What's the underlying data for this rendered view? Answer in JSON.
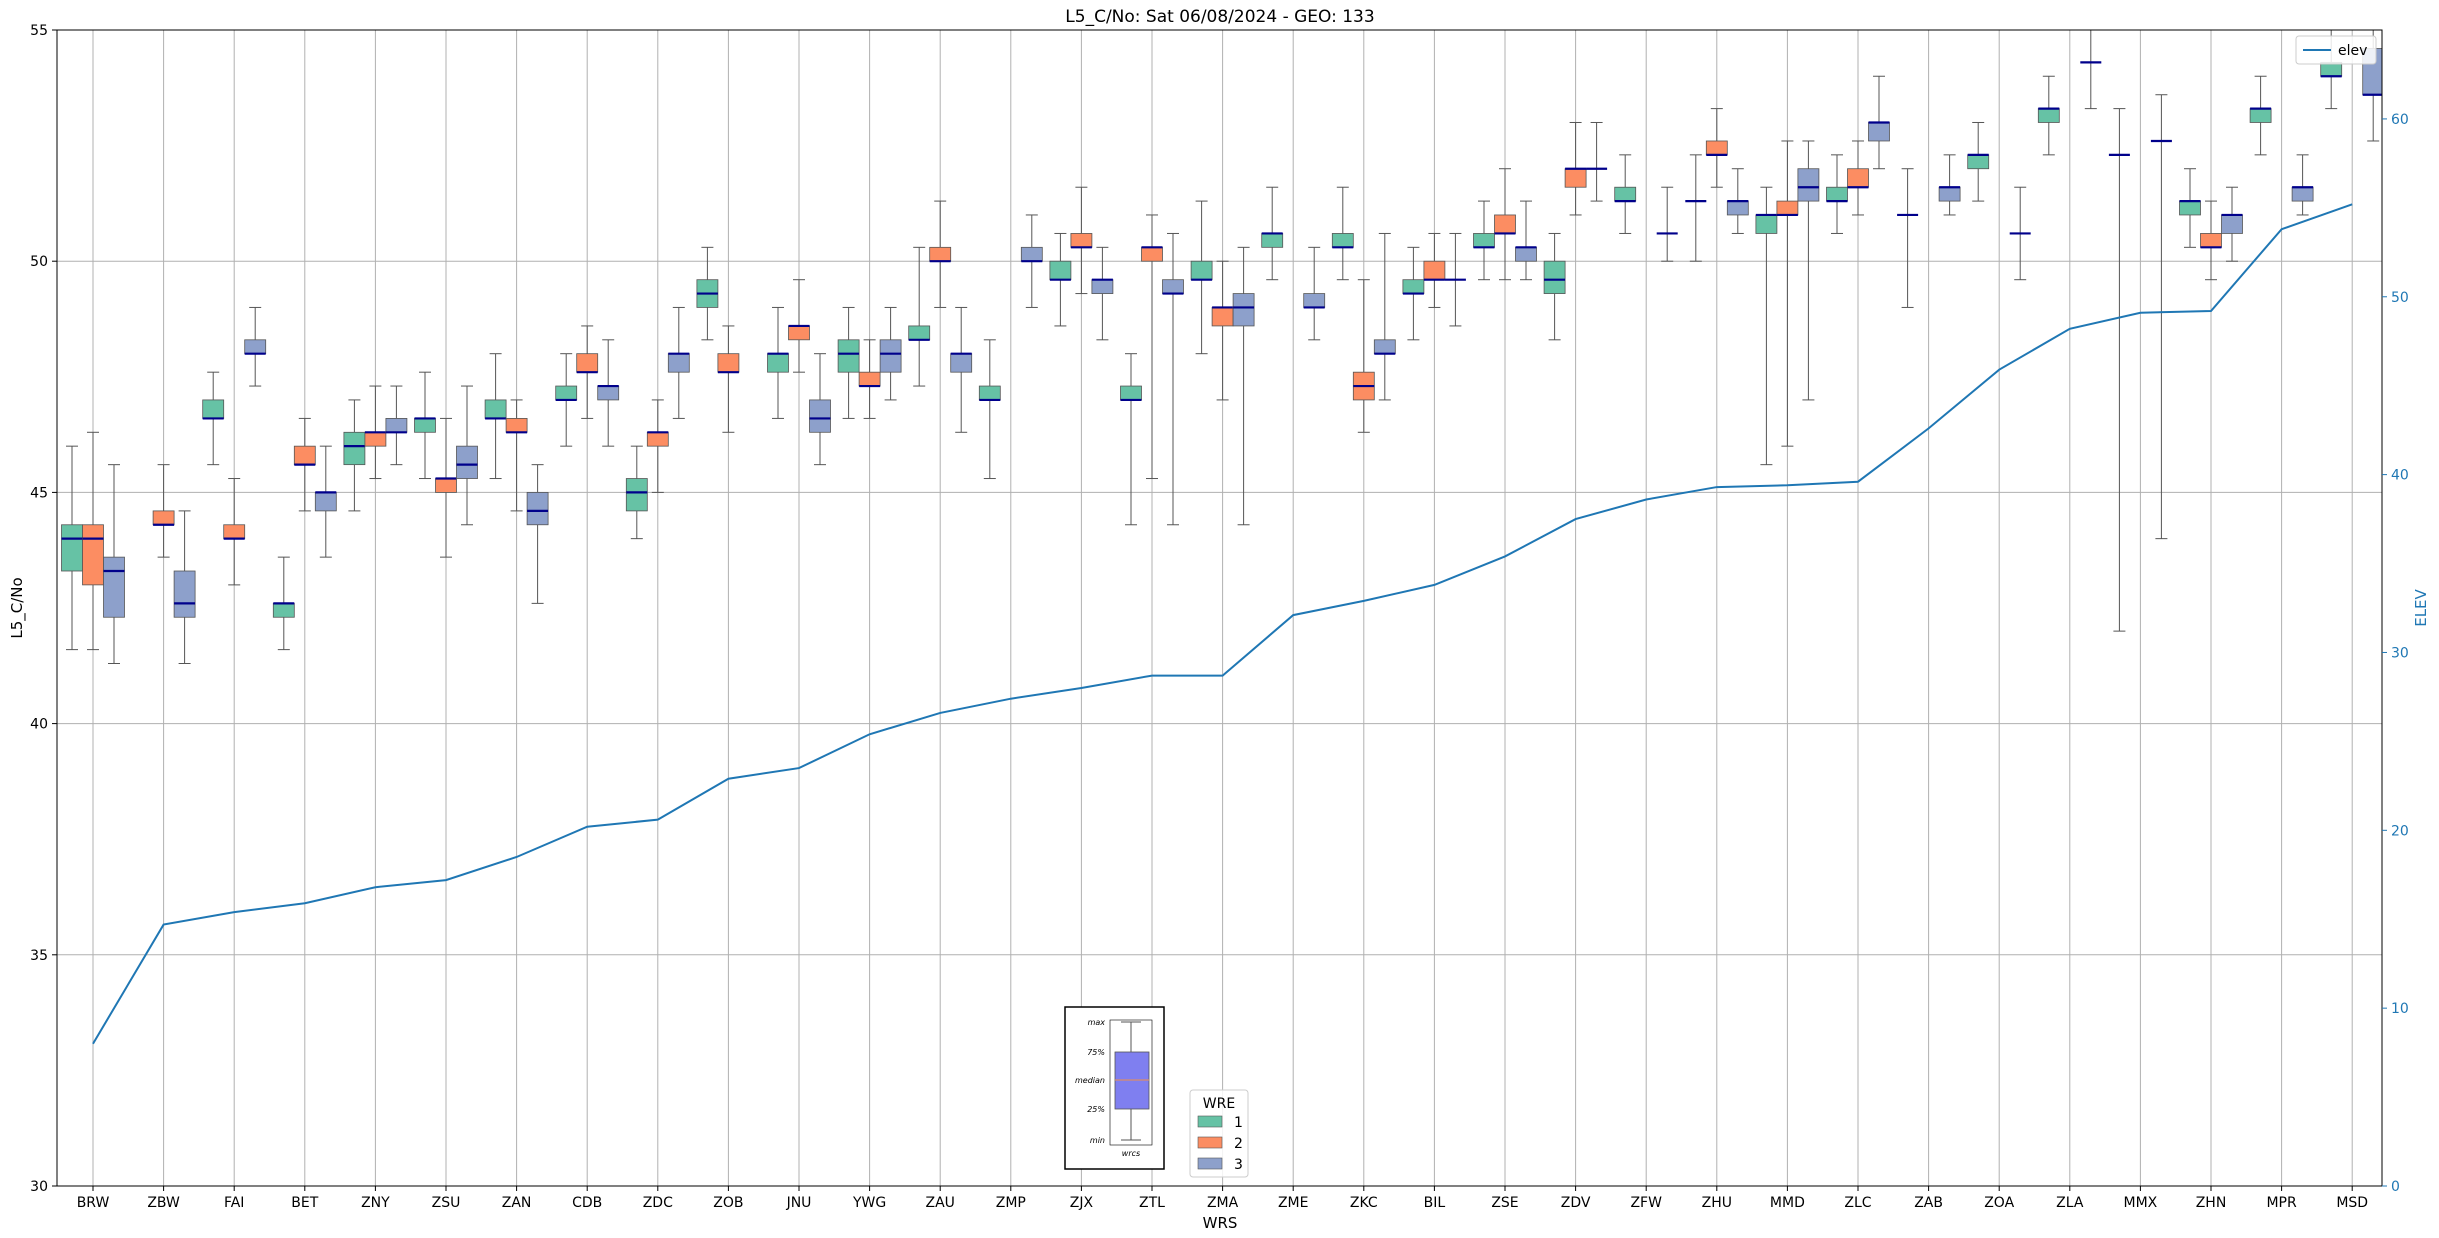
{
  "chart_data": {
    "type": "box",
    "title": "L5_C/No: Sat 06/08/2024 - GEO: 133",
    "xlabel": "WRS",
    "ylabel": "L5_C/No",
    "ylabel_right": "ELEV",
    "ylim": [
      30,
      55
    ],
    "ylim_right": [
      0,
      65
    ],
    "yticks": [
      "30",
      "35",
      "40",
      "45",
      "50",
      "55"
    ],
    "yticks_right": [
      "0",
      "10",
      "20",
      "30",
      "40",
      "50",
      "60"
    ],
    "grid": true,
    "categories": [
      "BRW",
      "ZBW",
      "FAI",
      "BET",
      "ZNY",
      "ZSU",
      "ZAN",
      "CDB",
      "ZDC",
      "ZOB",
      "JNU",
      "YWG",
      "ZAU",
      "ZMP",
      "ZJX",
      "ZTL",
      "ZMA",
      "ZME",
      "ZKC",
      "BIL",
      "ZSE",
      "ZDV",
      "ZFW",
      "ZHU",
      "MMD",
      "ZLC",
      "ZAB",
      "ZOA",
      "ZLA",
      "MMX",
      "ZHN",
      "MPR",
      "MSD"
    ],
    "elev": {
      "name": "elev",
      "values": [
        8,
        14.7,
        15.4,
        15.9,
        16.8,
        17.2,
        18.5,
        20.2,
        20.6,
        22.9,
        23.5,
        25.4,
        26.6,
        27.4,
        28.0,
        28.7,
        28.7,
        32.1,
        32.9,
        33.8,
        35.4,
        37.5,
        38.6,
        39.3,
        39.4,
        39.6,
        42.6,
        45.9,
        48.2,
        49.1,
        49.2,
        53.8,
        55.2
      ],
      "color": "#1f77b4",
      "legend_location": "upper right"
    },
    "box_legend": {
      "title": "WRE",
      "items": [
        {
          "label": "1",
          "color": "#66c2a5"
        },
        {
          "label": "2",
          "color": "#fc8d62"
        },
        {
          "label": "3",
          "color": "#8da0cb"
        }
      ]
    },
    "inset_key": {
      "labels": [
        "max",
        "75%",
        "median",
        "25%",
        "min"
      ],
      "xlabel": "wrcs"
    },
    "series": [
      {
        "name": "1",
        "boxes": [
          {
            "i": 0,
            "min": 41.6,
            "q1": 43.3,
            "med": 44.0,
            "q3": 44.3,
            "max": 46.0
          },
          {
            "i": 2,
            "min": 45.6,
            "q1": 46.6,
            "med": 46.6,
            "q3": 47.0,
            "max": 47.6
          },
          {
            "i": 3,
            "min": 41.6,
            "q1": 42.3,
            "med": 42.6,
            "q3": 42.6,
            "max": 43.6
          },
          {
            "i": 4,
            "min": 44.6,
            "q1": 45.6,
            "med": 46.0,
            "q3": 46.3,
            "max": 47.0
          },
          {
            "i": 5,
            "min": 45.3,
            "q1": 46.3,
            "med": 46.6,
            "q3": 46.6,
            "max": 47.6
          },
          {
            "i": 6,
            "min": 45.3,
            "q1": 46.6,
            "med": 46.6,
            "q3": 47.0,
            "max": 48.0
          },
          {
            "i": 7,
            "min": 46.0,
            "q1": 47.0,
            "med": 47.0,
            "q3": 47.3,
            "max": 48.0
          },
          {
            "i": 8,
            "min": 44.0,
            "q1": 44.6,
            "med": 45.0,
            "q3": 45.3,
            "max": 46.0
          },
          {
            "i": 9,
            "min": 48.3,
            "q1": 49.0,
            "med": 49.3,
            "q3": 49.6,
            "max": 50.3
          },
          {
            "i": 10,
            "min": 46.6,
            "q1": 47.6,
            "med": 48.0,
            "q3": 48.0,
            "max": 49.0
          },
          {
            "i": 11,
            "min": 46.6,
            "q1": 47.6,
            "med": 48.0,
            "q3": 48.3,
            "max": 49.0
          },
          {
            "i": 12,
            "min": 47.3,
            "q1": 48.3,
            "med": 48.3,
            "q3": 48.6,
            "max": 50.3
          },
          {
            "i": 13,
            "min": 45.3,
            "q1": 47.0,
            "med": 47.0,
            "q3": 47.3,
            "max": 48.3
          },
          {
            "i": 14,
            "min": 48.6,
            "q1": 49.6,
            "med": 49.6,
            "q3": 50.0,
            "max": 50.6
          },
          {
            "i": 15,
            "min": 44.3,
            "q1": 47.0,
            "med": 47.0,
            "q3": 47.3,
            "max": 48.0
          },
          {
            "i": 16,
            "min": 48.0,
            "q1": 49.6,
            "med": 49.6,
            "q3": 50.0,
            "max": 51.3
          },
          {
            "i": 17,
            "min": 49.6,
            "q1": 50.3,
            "med": 50.6,
            "q3": 50.6,
            "max": 51.6
          },
          {
            "i": 18,
            "min": 49.6,
            "q1": 50.3,
            "med": 50.3,
            "q3": 50.6,
            "max": 51.6
          },
          {
            "i": 19,
            "min": 48.3,
            "q1": 49.3,
            "med": 49.3,
            "q3": 49.6,
            "max": 50.3
          },
          {
            "i": 20,
            "min": 49.6,
            "q1": 50.3,
            "med": 50.3,
            "q3": 50.6,
            "max": 51.3
          },
          {
            "i": 21,
            "min": 48.3,
            "q1": 49.3,
            "med": 49.6,
            "q3": 50.0,
            "max": 50.6
          },
          {
            "i": 22,
            "min": 50.6,
            "q1": 51.3,
            "med": 51.3,
            "q3": 51.6,
            "max": 52.3
          },
          {
            "i": 23,
            "min": 50.0,
            "q1": 51.3,
            "med": 51.3,
            "q3": 51.3,
            "max": 52.3
          },
          {
            "i": 24,
            "min": 45.6,
            "q1": 50.6,
            "med": 51.0,
            "q3": 51.0,
            "max": 51.6
          },
          {
            "i": 25,
            "min": 50.6,
            "q1": 51.3,
            "med": 51.3,
            "q3": 51.6,
            "max": 52.3
          },
          {
            "i": 26,
            "min": 49.0,
            "q1": 51.0,
            "med": 51.0,
            "q3": 51.0,
            "max": 52.0
          },
          {
            "i": 27,
            "min": 51.3,
            "q1": 52.0,
            "med": 52.3,
            "q3": 52.3,
            "max": 53.0
          },
          {
            "i": 28,
            "min": 52.3,
            "q1": 53.0,
            "med": 53.3,
            "q3": 53.3,
            "max": 54.0
          },
          {
            "i": 29,
            "min": 42.0,
            "q1": 52.3,
            "med": 52.3,
            "q3": 52.3,
            "max": 53.3
          },
          {
            "i": 30,
            "min": 50.3,
            "q1": 51.0,
            "med": 51.3,
            "q3": 51.3,
            "max": 52.0
          },
          {
            "i": 31,
            "min": 52.3,
            "q1": 53.0,
            "med": 53.3,
            "q3": 53.3,
            "max": 54.0
          },
          {
            "i": 32,
            "min": 53.3,
            "q1": 54.0,
            "med": 54.0,
            "q3": 54.3,
            "max": 55.0
          }
        ]
      },
      {
        "name": "2",
        "boxes": [
          {
            "i": 0,
            "min": 41.6,
            "q1": 43.0,
            "med": 44.0,
            "q3": 44.3,
            "max": 46.3
          },
          {
            "i": 1,
            "min": 43.6,
            "q1": 44.3,
            "med": 44.3,
            "q3": 44.6,
            "max": 45.6
          },
          {
            "i": 2,
            "min": 43.0,
            "q1": 44.0,
            "med": 44.0,
            "q3": 44.3,
            "max": 45.3
          },
          {
            "i": 3,
            "min": 44.6,
            "q1": 45.6,
            "med": 45.6,
            "q3": 46.0,
            "max": 46.6
          },
          {
            "i": 4,
            "min": 45.3,
            "q1": 46.0,
            "med": 46.3,
            "q3": 46.3,
            "max": 47.3
          },
          {
            "i": 5,
            "min": 43.6,
            "q1": 45.0,
            "med": 45.3,
            "q3": 45.3,
            "max": 46.6
          },
          {
            "i": 6,
            "min": 44.6,
            "q1": 46.3,
            "med": 46.3,
            "q3": 46.6,
            "max": 47.0
          },
          {
            "i": 7,
            "min": 46.6,
            "q1": 47.6,
            "med": 47.6,
            "q3": 48.0,
            "max": 48.6
          },
          {
            "i": 8,
            "min": 45.0,
            "q1": 46.0,
            "med": 46.3,
            "q3": 46.3,
            "max": 47.0
          },
          {
            "i": 9,
            "min": 46.3,
            "q1": 47.6,
            "med": 47.6,
            "q3": 48.0,
            "max": 48.6
          },
          {
            "i": 10,
            "min": 47.6,
            "q1": 48.3,
            "med": 48.6,
            "q3": 48.6,
            "max": 49.6
          },
          {
            "i": 11,
            "min": 46.6,
            "q1": 47.3,
            "med": 47.3,
            "q3": 47.6,
            "max": 48.3
          },
          {
            "i": 12,
            "min": 49.0,
            "q1": 50.0,
            "med": 50.0,
            "q3": 50.3,
            "max": 51.3
          },
          {
            "i": 14,
            "min": 49.3,
            "q1": 50.3,
            "med": 50.3,
            "q3": 50.6,
            "max": 51.6
          },
          {
            "i": 15,
            "min": 45.3,
            "q1": 50.0,
            "med": 50.3,
            "q3": 50.3,
            "max": 51.0
          },
          {
            "i": 16,
            "min": 47.0,
            "q1": 48.6,
            "med": 49.0,
            "q3": 49.0,
            "max": 50.0
          },
          {
            "i": 18,
            "min": 46.3,
            "q1": 47.0,
            "med": 47.3,
            "q3": 47.6,
            "max": 49.6
          },
          {
            "i": 19,
            "min": 49.0,
            "q1": 49.6,
            "med": 49.6,
            "q3": 50.0,
            "max": 50.6
          },
          {
            "i": 20,
            "min": 49.6,
            "q1": 50.6,
            "med": 50.6,
            "q3": 51.0,
            "max": 52.0
          },
          {
            "i": 21,
            "min": 51.0,
            "q1": 51.6,
            "med": 52.0,
            "q3": 52.0,
            "max": 53.0
          },
          {
            "i": 23,
            "min": 51.6,
            "q1": 52.3,
            "med": 52.3,
            "q3": 52.6,
            "max": 53.3
          },
          {
            "i": 24,
            "min": 46.0,
            "q1": 51.0,
            "med": 51.0,
            "q3": 51.3,
            "max": 52.6
          },
          {
            "i": 25,
            "min": 51.0,
            "q1": 51.6,
            "med": 51.6,
            "q3": 52.0,
            "max": 52.6
          },
          {
            "i": 30,
            "min": 49.6,
            "q1": 50.3,
            "med": 50.3,
            "q3": 50.6,
            "max": 51.3
          }
        ]
      },
      {
        "name": "3",
        "boxes": [
          {
            "i": 0,
            "min": 41.3,
            "q1": 42.3,
            "med": 43.3,
            "q3": 43.6,
            "max": 45.6
          },
          {
            "i": 1,
            "min": 41.3,
            "q1": 42.3,
            "med": 42.6,
            "q3": 43.3,
            "max": 44.6
          },
          {
            "i": 2,
            "min": 47.3,
            "q1": 48.0,
            "med": 48.0,
            "q3": 48.3,
            "max": 49.0
          },
          {
            "i": 3,
            "min": 43.6,
            "q1": 44.6,
            "med": 45.0,
            "q3": 45.0,
            "max": 46.0
          },
          {
            "i": 4,
            "min": 45.6,
            "q1": 46.3,
            "med": 46.3,
            "q3": 46.6,
            "max": 47.3
          },
          {
            "i": 5,
            "min": 44.3,
            "q1": 45.3,
            "med": 45.6,
            "q3": 46.0,
            "max": 47.3
          },
          {
            "i": 6,
            "min": 42.6,
            "q1": 44.3,
            "med": 44.6,
            "q3": 45.0,
            "max": 45.6
          },
          {
            "i": 7,
            "min": 46.0,
            "q1": 47.0,
            "med": 47.3,
            "q3": 47.3,
            "max": 48.3
          },
          {
            "i": 8,
            "min": 46.6,
            "q1": 47.6,
            "med": 48.0,
            "q3": 48.0,
            "max": 49.0
          },
          {
            "i": 10,
            "min": 45.6,
            "q1": 46.3,
            "med": 46.6,
            "q3": 47.0,
            "max": 48.0
          },
          {
            "i": 11,
            "min": 47.0,
            "q1": 47.6,
            "med": 48.0,
            "q3": 48.3,
            "max": 49.0
          },
          {
            "i": 12,
            "min": 46.3,
            "q1": 47.6,
            "med": 48.0,
            "q3": 48.0,
            "max": 49.0
          },
          {
            "i": 13,
            "min": 49.0,
            "q1": 50.0,
            "med": 50.0,
            "q3": 50.3,
            "max": 51.0
          },
          {
            "i": 14,
            "min": 48.3,
            "q1": 49.3,
            "med": 49.6,
            "q3": 49.6,
            "max": 50.3
          },
          {
            "i": 15,
            "min": 44.3,
            "q1": 49.3,
            "med": 49.3,
            "q3": 49.6,
            "max": 50.6
          },
          {
            "i": 16,
            "min": 44.3,
            "q1": 48.6,
            "med": 49.0,
            "q3": 49.3,
            "max": 50.3
          },
          {
            "i": 17,
            "min": 48.3,
            "q1": 49.0,
            "med": 49.0,
            "q3": 49.3,
            "max": 50.3
          },
          {
            "i": 18,
            "min": 47.0,
            "q1": 48.0,
            "med": 48.0,
            "q3": 48.3,
            "max": 50.6
          },
          {
            "i": 19,
            "min": 48.6,
            "q1": 49.6,
            "med": 49.6,
            "q3": 49.6,
            "max": 50.6
          },
          {
            "i": 20,
            "min": 49.6,
            "q1": 50.0,
            "med": 50.3,
            "q3": 50.3,
            "max": 51.3
          },
          {
            "i": 21,
            "min": 51.3,
            "q1": 52.0,
            "med": 52.0,
            "q3": 52.0,
            "max": 53.0
          },
          {
            "i": 22,
            "min": 50.0,
            "q1": 50.6,
            "med": 50.6,
            "q3": 50.6,
            "max": 51.6
          },
          {
            "i": 23,
            "min": 50.6,
            "q1": 51.0,
            "med": 51.3,
            "q3": 51.3,
            "max": 52.0
          },
          {
            "i": 24,
            "min": 47.0,
            "q1": 51.3,
            "med": 51.6,
            "q3": 52.0,
            "max": 52.6
          },
          {
            "i": 25,
            "min": 52.0,
            "q1": 52.6,
            "med": 53.0,
            "q3": 53.0,
            "max": 54.0
          },
          {
            "i": 26,
            "min": 51.0,
            "q1": 51.3,
            "med": 51.6,
            "q3": 51.6,
            "max": 52.3
          },
          {
            "i": 27,
            "min": 49.6,
            "q1": 50.6,
            "med": 50.6,
            "q3": 50.6,
            "max": 51.6
          },
          {
            "i": 28,
            "min": 53.3,
            "q1": 54.3,
            "med": 54.3,
            "q3": 54.3,
            "max": 55.3
          },
          {
            "i": 29,
            "min": 44.0,
            "q1": 52.6,
            "med": 52.6,
            "q3": 52.6,
            "max": 53.6
          },
          {
            "i": 30,
            "min": 50.0,
            "q1": 50.6,
            "med": 51.0,
            "q3": 51.0,
            "max": 51.6
          },
          {
            "i": 31,
            "min": 51.0,
            "q1": 51.3,
            "med": 51.6,
            "q3": 51.6,
            "max": 52.3
          },
          {
            "i": 32,
            "min": 52.6,
            "q1": 53.6,
            "med": 53.6,
            "q3": 54.6,
            "max": 55.3
          }
        ]
      }
    ]
  }
}
